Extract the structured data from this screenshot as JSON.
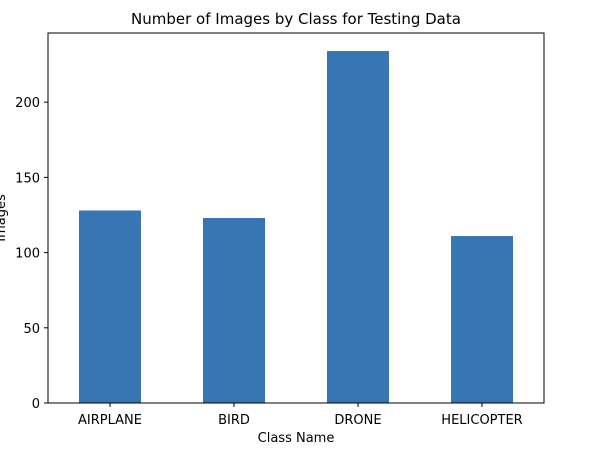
{
  "chart_data": {
    "type": "bar",
    "title": "Number of Images by Class for Testing Data",
    "xlabel": "Class Name",
    "ylabel": "Images",
    "categories": [
      "AIRPLANE",
      "BIRD",
      "DRONE",
      "HELICOPTER"
    ],
    "values": [
      128,
      123,
      234,
      111
    ],
    "ylim": [
      0,
      246
    ],
    "yticks": [
      0,
      50,
      100,
      150,
      200
    ],
    "grid": false,
    "legend": "none",
    "bar_color": "#3776b2"
  }
}
